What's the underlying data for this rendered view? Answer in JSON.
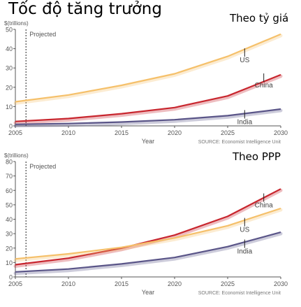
{
  "title": "Tốc độ tăng trưởng",
  "chart_data": [
    {
      "type": "line",
      "title": "Theo tỷ giá",
      "ylabel": "$(trillions)",
      "xlabel": "Year",
      "xlim": [
        2005,
        2030
      ],
      "ylim": [
        0,
        50
      ],
      "x_ticks": [
        "2005",
        "2010",
        "2015",
        "2020",
        "2025",
        "2030"
      ],
      "y_ticks": [
        "0",
        "10",
        "20",
        "30",
        "40",
        "50"
      ],
      "grid": false,
      "projected_label": "Projected",
      "projected_x": 2006,
      "source": "SOURCE: Economist Intelligence Unit",
      "series": [
        {
          "name": "US",
          "color": "#f5c06a",
          "label_x": 2026.6,
          "label_y": 38,
          "x": [
            2005,
            2010,
            2015,
            2020,
            2025,
            2030
          ],
          "y": [
            12.5,
            16,
            21,
            27,
            36,
            47.5
          ]
        },
        {
          "name": "China",
          "color": "#c8262e",
          "label_x": 2028.4,
          "label_y": 25,
          "x": [
            2005,
            2010,
            2015,
            2020,
            2025,
            2030
          ],
          "y": [
            2.3,
            3.8,
            6.3,
            9.5,
            15.5,
            26.5
          ]
        },
        {
          "name": "India",
          "color": "#5a5588",
          "label_x": 2026.6,
          "label_y": 6,
          "x": [
            2005,
            2010,
            2015,
            2020,
            2025,
            2030
          ],
          "y": [
            0.8,
            1.2,
            2,
            3.2,
            5.3,
            8.7
          ]
        }
      ]
    },
    {
      "type": "line",
      "title": "Theo PPP",
      "ylabel": "$(trillions)",
      "xlabel": "Year",
      "xlim": [
        2005,
        2030
      ],
      "ylim": [
        0,
        80
      ],
      "x_ticks": [
        "2005",
        "2010",
        "2015",
        "2020",
        "2025",
        "2030"
      ],
      "y_ticks": [
        "0",
        "10",
        "20",
        "30",
        "40",
        "50",
        "60",
        "70",
        "80"
      ],
      "grid": false,
      "projected_label": "Projected",
      "projected_x": 2006,
      "source": "SOURCE: Economist Intelligence Unit",
      "series": [
        {
          "name": "China",
          "color": "#c8262e",
          "label_x": 2028.4,
          "label_y": 55,
          "x": [
            2005,
            2010,
            2015,
            2020,
            2025,
            2030
          ],
          "y": [
            8.5,
            13,
            20,
            29,
            42,
            61
          ]
        },
        {
          "name": "US",
          "color": "#f5c06a",
          "label_x": 2026.6,
          "label_y": 38,
          "x": [
            2005,
            2010,
            2015,
            2020,
            2025,
            2030
          ],
          "y": [
            12.5,
            16,
            20.5,
            27,
            35.5,
            47.5
          ]
        },
        {
          "name": "India",
          "color": "#5a5588",
          "label_x": 2026.6,
          "label_y": 23,
          "x": [
            2005,
            2010,
            2015,
            2020,
            2025,
            2030
          ],
          "y": [
            3.5,
            5.5,
            9,
            13.5,
            21,
            31
          ]
        }
      ]
    }
  ]
}
